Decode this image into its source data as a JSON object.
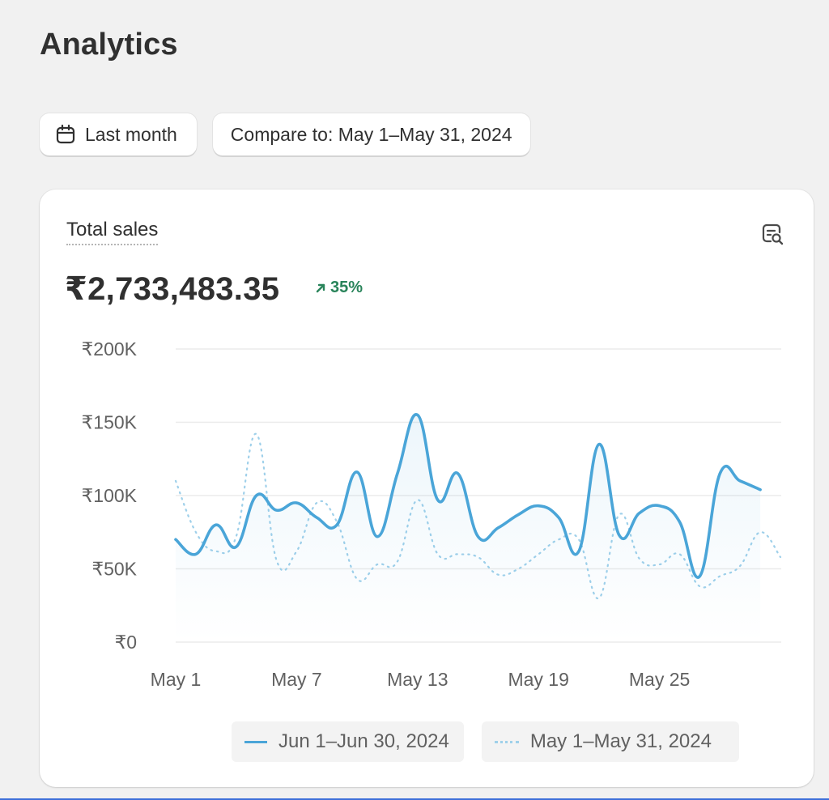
{
  "page": {
    "title": "Analytics"
  },
  "filters": {
    "date_range": {
      "icon": "calendar-icon",
      "label": "Last month"
    },
    "compare": {
      "label": "Compare to: May 1–May 31, 2024"
    }
  },
  "card": {
    "metric_title": "Total sales",
    "metric_value": "₹2,733,483.35",
    "change": {
      "icon": "arrow-up-right-icon",
      "value": "35%",
      "color": "#29845a"
    },
    "action_icon": "explore-data-icon"
  },
  "chart_data": {
    "type": "line",
    "title": "",
    "xlabel": "",
    "ylabel": "",
    "x_tick_labels": [
      "May 1",
      "May 7",
      "May 13",
      "May 19",
      "May 25"
    ],
    "x_tick_days": [
      1,
      7,
      13,
      19,
      25
    ],
    "x_range": [
      1,
      31
    ],
    "y_tick_labels": [
      "₹0",
      "₹50K",
      "₹100K",
      "₹150K",
      "₹200K"
    ],
    "ylim": [
      0,
      200000
    ],
    "grid": true,
    "legend_placement": "bottom",
    "series": [
      {
        "name": "Jun 1–Jun 30, 2024",
        "style": "solid",
        "color": "#4aa5d8",
        "values": [
          70000,
          60000,
          80000,
          65000,
          100000,
          90000,
          95000,
          85000,
          80000,
          116000,
          72000,
          115000,
          155000,
          97000,
          115000,
          72000,
          78000,
          87000,
          93000,
          85000,
          62000,
          135000,
          73000,
          88000,
          93000,
          82000,
          45000,
          115000,
          110000,
          104000
        ]
      },
      {
        "name": "May 1–May 31, 2024",
        "style": "dotted",
        "color": "#9fd0ea",
        "values": [
          110000,
          75000,
          62000,
          72000,
          142000,
          56000,
          62000,
          95000,
          82000,
          43000,
          53000,
          55000,
          97000,
          60000,
          60000,
          58000,
          46000,
          50000,
          60000,
          70000,
          70000,
          30000,
          87000,
          57000,
          53000,
          60000,
          38000,
          45000,
          52000,
          75000,
          58000
        ]
      }
    ]
  }
}
